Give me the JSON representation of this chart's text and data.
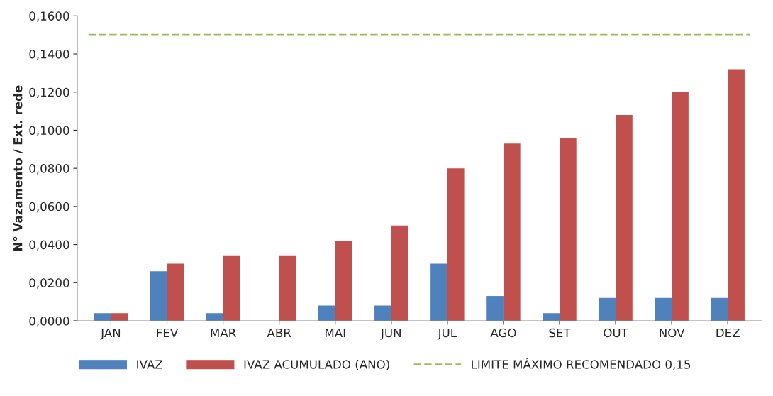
{
  "chart_data": {
    "type": "bar",
    "ylabel": "N° Vazamento / Ext. rede",
    "categories": [
      "JAN",
      "FEV",
      "MAR",
      "ABR",
      "MAI",
      "JUN",
      "JUL",
      "AGO",
      "SET",
      "OUT",
      "NOV",
      "DEZ"
    ],
    "series": [
      {
        "name": "IVAZ",
        "color": "#4f81bd",
        "values": [
          0.004,
          0.026,
          0.004,
          null,
          0.008,
          0.008,
          0.03,
          0.013,
          0.004,
          0.012,
          0.012,
          0.012
        ]
      },
      {
        "name": "IVAZ ACUMULADO (ANO)",
        "color": "#c0504d",
        "values": [
          0.004,
          0.03,
          0.034,
          0.034,
          0.042,
          0.05,
          0.08,
          0.093,
          0.096,
          0.108,
          0.12,
          0.132
        ]
      }
    ],
    "ref_lines": [
      {
        "axis": "y",
        "value": 0.15,
        "label": "LIMITE MÁXIMO RECOMENDADO 0,15",
        "color": "#9bbb59",
        "line_style": "dashed"
      }
    ],
    "ylim": [
      0,
      0.16
    ],
    "yticks": [
      {
        "value": 0,
        "label": "0,0000"
      },
      {
        "value": 0.02,
        "label": "0,0200"
      },
      {
        "value": 0.04,
        "label": "0,0400"
      },
      {
        "value": 0.06,
        "label": "0,0600"
      },
      {
        "value": 0.08,
        "label": "0,0800"
      },
      {
        "value": 0.1,
        "label": "0,1000"
      },
      {
        "value": 0.12,
        "label": "0,1200"
      },
      {
        "value": 0.14,
        "label": "0,1400"
      },
      {
        "value": 0.16,
        "label": "0,1600"
      }
    ],
    "grid": false,
    "legend": "bottom"
  }
}
